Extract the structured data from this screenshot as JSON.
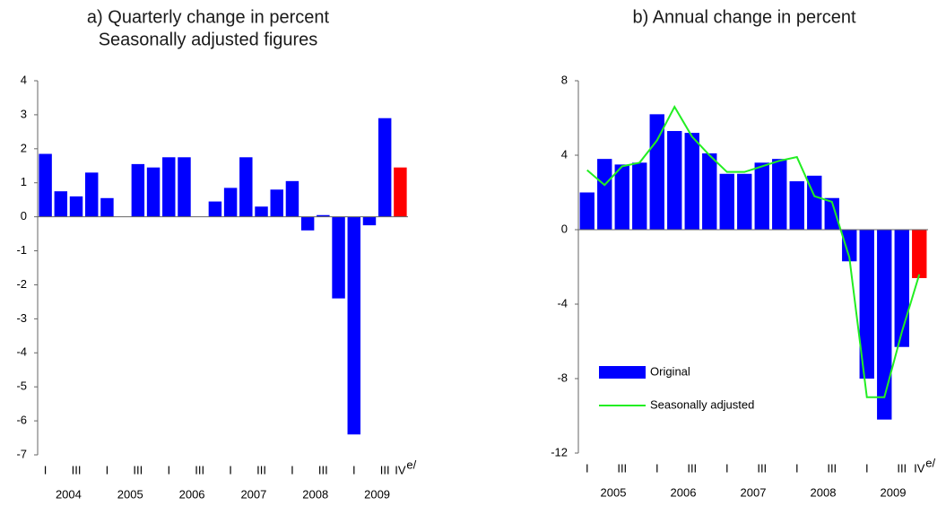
{
  "chart_data": [
    {
      "type": "bar",
      "title": [
        "a) Quarterly change in percent",
        "Seasonally adjusted figures"
      ],
      "categories": [
        "I",
        null,
        "III",
        null,
        "I",
        null,
        "III",
        null,
        "I",
        null,
        "III",
        null,
        "I",
        null,
        "III",
        null,
        "I",
        null,
        "III",
        null,
        "I",
        null,
        "III",
        "IV"
      ],
      "estimate_mark": "e/",
      "years": [
        "2004",
        "2005",
        "2006",
        "2007",
        "2008",
        "2009"
      ],
      "series": [
        {
          "name": null,
          "type": "bar",
          "values": [
            1.85,
            0.75,
            0.6,
            1.3,
            0.55,
            0,
            1.55,
            1.45,
            1.75,
            1.75,
            0,
            0.45,
            0.85,
            1.75,
            0.3,
            0.8,
            1.05,
            -0.4,
            0.05,
            -2.4,
            -6.4,
            -0.25,
            2.9,
            1.45
          ],
          "colors": [
            "#0000ff",
            "#0000ff",
            "#0000ff",
            "#0000ff",
            "#0000ff",
            "#0000ff",
            "#0000ff",
            "#0000ff",
            "#0000ff",
            "#0000ff",
            "#0000ff",
            "#0000ff",
            "#0000ff",
            "#0000ff",
            "#0000ff",
            "#0000ff",
            "#0000ff",
            "#0000ff",
            "#0000ff",
            "#0000ff",
            "#0000ff",
            "#0000ff",
            "#0000ff",
            "#ff0000"
          ]
        }
      ],
      "ylim": [
        -7,
        4
      ],
      "yticks": [
        -7,
        -6,
        -5,
        -4,
        -3,
        -2,
        -1,
        0,
        1,
        2,
        3,
        4
      ],
      "grid": false
    },
    {
      "type": "bar",
      "title": [
        "b) Annual change in percent"
      ],
      "categories": [
        "I",
        null,
        "III",
        null,
        "I",
        null,
        "III",
        null,
        "I",
        null,
        "III",
        null,
        "I",
        null,
        "III",
        null,
        "I",
        null,
        "III",
        "IV"
      ],
      "estimate_mark": "e/",
      "years": [
        "2005",
        "2006",
        "2007",
        "2008",
        "2009"
      ],
      "series": [
        {
          "name": "Original",
          "type": "bar",
          "color": "#0000ff",
          "values": [
            2.0,
            3.8,
            3.5,
            3.6,
            6.2,
            5.3,
            5.2,
            4.1,
            3.0,
            3.0,
            3.6,
            3.8,
            2.6,
            2.9,
            1.7,
            -1.7,
            -8.0,
            -10.2,
            -6.3,
            -2.6
          ],
          "colors": [
            "#0000ff",
            "#0000ff",
            "#0000ff",
            "#0000ff",
            "#0000ff",
            "#0000ff",
            "#0000ff",
            "#0000ff",
            "#0000ff",
            "#0000ff",
            "#0000ff",
            "#0000ff",
            "#0000ff",
            "#0000ff",
            "#0000ff",
            "#0000ff",
            "#0000ff",
            "#0000ff",
            "#0000ff",
            "#ff0000"
          ]
        },
        {
          "name": "Seasonally adjusted",
          "type": "line",
          "color": "#22ee22",
          "values": [
            3.2,
            2.4,
            3.4,
            3.6,
            4.8,
            6.6,
            5.0,
            4.0,
            3.1,
            3.1,
            3.4,
            3.7,
            3.9,
            1.8,
            1.5,
            -1.5,
            -9.0,
            -9.0,
            -5.5,
            -2.4
          ]
        }
      ],
      "ylim": [
        -12,
        8
      ],
      "yticks": [
        -12,
        -8,
        -4,
        0,
        4,
        8
      ],
      "grid": false,
      "legend": "lower left"
    }
  ]
}
